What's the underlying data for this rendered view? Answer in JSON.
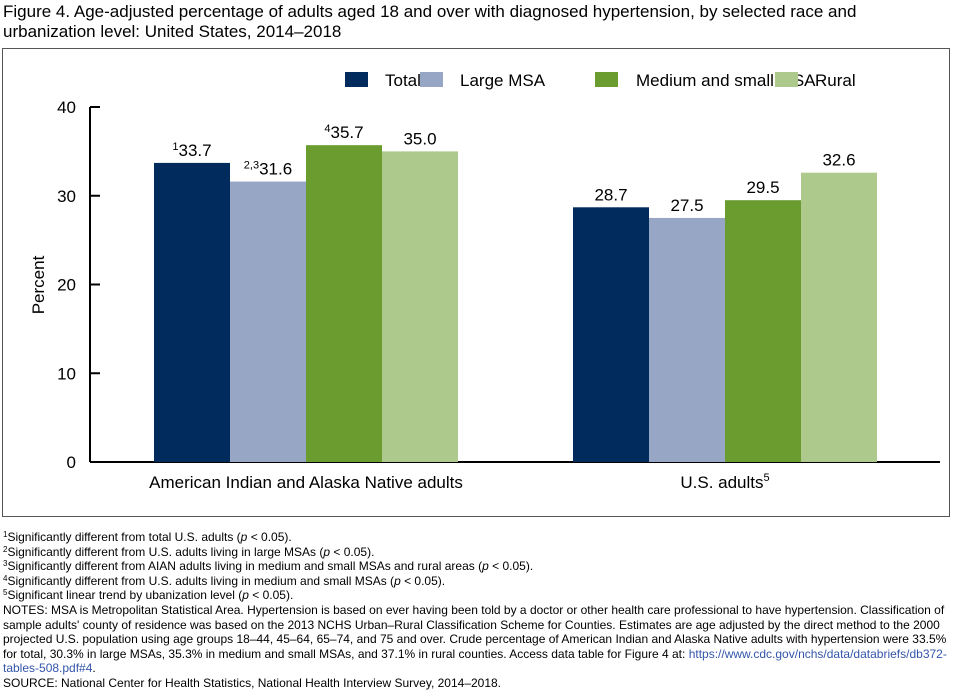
{
  "title": "Figure 4. Age-adjusted percentage of adults aged 18 and over with diagnosed hypertension, by selected race and urbanization level: United States, 2014–2018",
  "chart_data": {
    "type": "bar",
    "title": "Figure 4. Age-adjusted percentage of adults aged 18 and over with diagnosed hypertension, by selected race and urbanization level: United States, 2014–2018",
    "xlabel": "",
    "ylabel": "Percent",
    "ylim": [
      0,
      40
    ],
    "yticks": [
      0,
      10,
      20,
      30,
      40
    ],
    "grid": false,
    "legend_position": "top-right",
    "categories": [
      {
        "label": "American Indian and Alaska Native adults",
        "sup": ""
      },
      {
        "label": "U.S. adults",
        "sup": "5"
      }
    ],
    "series": [
      {
        "name": "Total",
        "color": "#002b5c",
        "values": [
          33.7,
          28.7
        ],
        "labels": [
          "33.7",
          "28.7"
        ],
        "sups": [
          "1",
          ""
        ]
      },
      {
        "name": "Large MSA",
        "color": "#97a6c4",
        "values": [
          31.6,
          27.5
        ],
        "labels": [
          "31.6",
          "27.5"
        ],
        "sups": [
          "2,3",
          ""
        ]
      },
      {
        "name": "Medium and small MSA",
        "color": "#6a9c30",
        "values": [
          35.7,
          29.5
        ],
        "labels": [
          "35.7",
          "29.5"
        ],
        "sups": [
          "4",
          ""
        ]
      },
      {
        "name": "Rural",
        "color": "#adc98c",
        "values": [
          35.0,
          32.6
        ],
        "labels": [
          "35.0",
          "32.6"
        ],
        "sups": [
          "",
          ""
        ]
      }
    ]
  },
  "footnotes": [
    {
      "sup": "1",
      "text": "Significantly different from total U.S. adults (",
      "p": "p",
      "tail": " < 0.05)."
    },
    {
      "sup": "2",
      "text": "Significantly different from U.S. adults living in large MSAs (",
      "p": "p",
      "tail": " < 0.05)."
    },
    {
      "sup": "3",
      "text": "Significantly different from AIAN adults living in medium and small MSAs and rural areas (",
      "p": "p",
      "tail": " < 0.05)."
    },
    {
      "sup": "4",
      "text": "Significantly different from U.S. adults living in medium and small MSAs (",
      "p": "p",
      "tail": " < 0.05)."
    },
    {
      "sup": "5",
      "text": "Significant linear trend by ubanization level (",
      "p": "p",
      "tail": " < 0.05)."
    }
  ],
  "notes": {
    "text": "NOTES: MSA is Metropolitan Statistical Area. Hypertension is based on ever having been told by a doctor or other health care professional to have hypertension. Classification of sample adults' county of residence was based on the 2013 NCHS Urban–Rural Classification Scheme for Counties. Estimates are age adjusted by the direct method to the 2000 projected U.S. population using age groups 18–44, 45–64, 65–74, and 75 and over. Crude percentage of American Indian and Alaska Native adults with hypertension were 33.5% for total, 30.3% in large MSAs, 35.3% in medium and small MSAs, and 37.1% in rural counties. Access data table for Figure 4 at: ",
    "link": "https://www.cdc.gov/nchs/data/databriefs/db372-tables-508.pdf#4",
    "end": "."
  },
  "source": "SOURCE: National Center for Health Statistics, National Health Interview Survey, 2014–2018."
}
